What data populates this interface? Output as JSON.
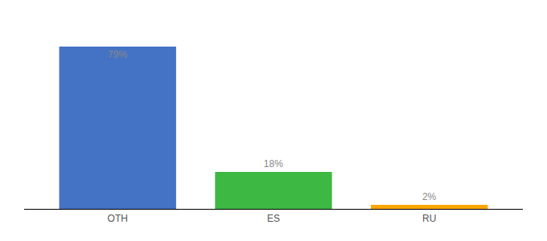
{
  "chart_data": {
    "type": "bar",
    "categories": [
      "OTH",
      "ES",
      "RU"
    ],
    "values": [
      79,
      18,
      2
    ],
    "value_labels": [
      "79%",
      "18%",
      "2%"
    ],
    "colors": [
      "#4472C4",
      "#3CB843",
      "#FFA500"
    ],
    "ylim": [
      0,
      90
    ],
    "grid": false,
    "data_labels": true,
    "tick_labels": "x"
  }
}
